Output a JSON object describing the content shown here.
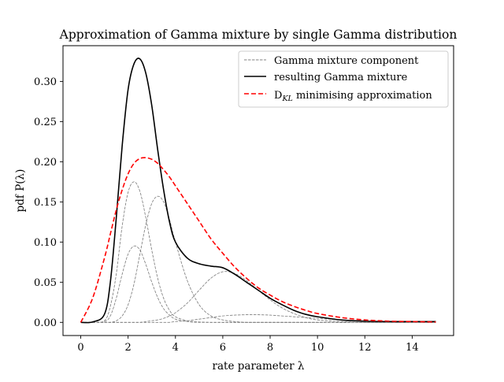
{
  "chart_data": {
    "type": "line",
    "title": "Approximation of Gamma mixture by single Gamma distribution",
    "xlabel": "rate parameter λ",
    "ylabel": "pdf P(λ)",
    "xlim": [
      -0.75,
      15.75
    ],
    "ylim": [
      -0.0164,
      0.3445
    ],
    "xticks": [
      0,
      2,
      4,
      6,
      8,
      10,
      12,
      14
    ],
    "yticks": [
      0.0,
      0.05,
      0.1,
      0.15,
      0.2,
      0.25,
      0.3
    ],
    "xtick_labels": [
      "0",
      "2",
      "4",
      "6",
      "8",
      "10",
      "12",
      "14"
    ],
    "ytick_labels": [
      "0.00",
      "0.05",
      "0.10",
      "0.15",
      "0.20",
      "0.25",
      "0.30"
    ],
    "grid": false,
    "legend_position": "top-right",
    "x": [
      0,
      0.5,
      1,
      1.25,
      1.5,
      1.75,
      2,
      2.25,
      2.5,
      2.75,
      3,
      3.25,
      3.5,
      3.75,
      4,
      4.5,
      5,
      5.5,
      6,
      6.5,
      7,
      7.5,
      8,
      8.5,
      9,
      9.5,
      10,
      11,
      12,
      13,
      14,
      15
    ],
    "series": [
      {
        "name": "Gamma mixture component",
        "style": "thin-dashed",
        "color": "#808080",
        "values": [
          0,
          0,
          0.002,
          0.02,
          0.06,
          0.12,
          0.162,
          0.175,
          0.163,
          0.13,
          0.09,
          0.055,
          0.03,
          0.015,
          0.007,
          0.002,
          0.0005,
          0,
          0,
          0,
          0,
          0,
          0,
          0,
          0,
          0,
          0,
          0,
          0,
          0,
          0,
          0
        ]
      },
      {
        "name": "Gamma mixture component",
        "style": "thin-dashed",
        "color": "#808080",
        "values": [
          0,
          0,
          0.001,
          0.008,
          0.03,
          0.06,
          0.085,
          0.095,
          0.09,
          0.072,
          0.05,
          0.031,
          0.017,
          0.009,
          0.004,
          0.001,
          0,
          0,
          0,
          0,
          0,
          0,
          0,
          0,
          0,
          0,
          0,
          0,
          0,
          0,
          0,
          0
        ]
      },
      {
        "name": "Gamma mixture component",
        "style": "thin-dashed",
        "color": "#808080",
        "values": [
          0,
          0,
          0,
          0,
          0.002,
          0.008,
          0.022,
          0.048,
          0.085,
          0.122,
          0.148,
          0.157,
          0.15,
          0.128,
          0.1,
          0.052,
          0.022,
          0.008,
          0.003,
          0.001,
          0,
          0,
          0,
          0,
          0,
          0,
          0,
          0,
          0,
          0,
          0,
          0
        ]
      },
      {
        "name": "Gamma mixture component",
        "style": "thin-dashed",
        "color": "#808080",
        "values": [
          0,
          0,
          0,
          0,
          0,
          0,
          0,
          0,
          0,
          0.001,
          0.002,
          0.003,
          0.005,
          0.008,
          0.012,
          0.024,
          0.04,
          0.055,
          0.063,
          0.061,
          0.052,
          0.04,
          0.028,
          0.018,
          0.011,
          0.006,
          0.003,
          0.001,
          0,
          0,
          0,
          0
        ]
      },
      {
        "name": "Gamma mixture component",
        "style": "thin-dashed",
        "color": "#808080",
        "values": [
          0,
          0,
          0,
          0,
          0,
          0,
          0,
          0,
          0,
          0,
          0,
          0,
          0,
          0,
          0.001,
          0.002,
          0.004,
          0.006,
          0.008,
          0.009,
          0.0095,
          0.0095,
          0.009,
          0.008,
          0.007,
          0.006,
          0.005,
          0.003,
          0.0015,
          0.0007,
          0.0003,
          0
        ]
      },
      {
        "name": "resulting Gamma mixture",
        "style": "solid",
        "color": "#000000",
        "values": [
          0,
          0.0005,
          0.01,
          0.05,
          0.13,
          0.22,
          0.29,
          0.322,
          0.328,
          0.31,
          0.27,
          0.215,
          0.165,
          0.125,
          0.1,
          0.08,
          0.073,
          0.07,
          0.068,
          0.06,
          0.05,
          0.04,
          0.03,
          0.022,
          0.015,
          0.01,
          0.007,
          0.003,
          0.0015,
          0.001,
          0.001,
          0.001
        ]
      },
      {
        "name": "D_KL minimising approximation",
        "style": "dashed",
        "color": "#ff0000",
        "values": [
          0,
          0.03,
          0.08,
          0.11,
          0.14,
          0.165,
          0.185,
          0.198,
          0.204,
          0.205,
          0.203,
          0.198,
          0.19,
          0.181,
          0.17,
          0.148,
          0.126,
          0.104,
          0.086,
          0.069,
          0.055,
          0.043,
          0.034,
          0.026,
          0.02,
          0.015,
          0.011,
          0.006,
          0.003,
          0.0015,
          0.001,
          0.0005
        ]
      }
    ]
  }
}
